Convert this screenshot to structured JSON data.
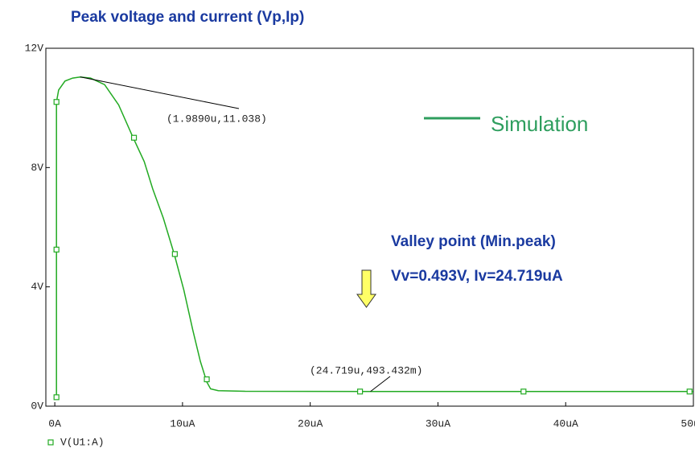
{
  "chart_data": {
    "type": "line",
    "title": "Peak voltage and current (Vp,Ip)",
    "x": [
      0.13,
      0.13,
      0.3,
      0.8,
      1.4,
      1.989,
      2.8,
      3.9,
      5.0,
      6.1,
      7.0,
      7.67,
      8.5,
      9.37,
      10.1,
      10.8,
      11.4,
      11.9,
      12.2,
      12.8,
      14.9,
      24.719,
      36.7,
      50.0
    ],
    "series": [
      {
        "name": "V(U1:A)",
        "color": "#22aa22",
        "values": [
          0.3,
          10.2,
          10.6,
          10.9,
          11.0,
          11.038,
          11.0,
          10.78,
          10.1,
          9.03,
          8.2,
          7.28,
          6.3,
          5.07,
          3.9,
          2.56,
          1.5,
          0.81,
          0.58,
          0.52,
          0.5,
          0.493,
          0.493,
          0.493
        ]
      }
    ],
    "markers": {
      "x": [
        0.13,
        0.13,
        0.13,
        6.2,
        9.4,
        11.9,
        23.9,
        36.7,
        49.7
      ],
      "y": [
        0.3,
        5.25,
        10.2,
        9.0,
        5.1,
        0.9,
        0.49,
        0.49,
        0.49
      ]
    },
    "xlim": [
      -0.7,
      50
    ],
    "ylim": [
      0,
      12
    ],
    "xticks": [
      {
        "value": 0,
        "label": "0A"
      },
      {
        "value": 10,
        "label": "10uA"
      },
      {
        "value": 20,
        "label": "20uA"
      },
      {
        "value": 30,
        "label": "30uA"
      },
      {
        "value": 40,
        "label": "40uA"
      },
      {
        "value": 50,
        "label": "50uA"
      }
    ],
    "yticks": [
      {
        "value": 0,
        "label": "0V"
      },
      {
        "value": 4,
        "label": "4V"
      },
      {
        "value": 8,
        "label": "8V"
      },
      {
        "value": 12,
        "label": "12V"
      }
    ],
    "annotations": [
      {
        "text": "(1.9890u,11.038)",
        "at": [
          1.989,
          11.038
        ]
      },
      {
        "text": "(24.719u,493.432m)",
        "at": [
          24.719,
          0.493
        ]
      }
    ],
    "legend_text": "Simulation",
    "legend_color": "#2e9e5e",
    "notes": [
      "Valley point (Min.peak)",
      "Vv=0.493V, Iv=24.719uA"
    ]
  }
}
